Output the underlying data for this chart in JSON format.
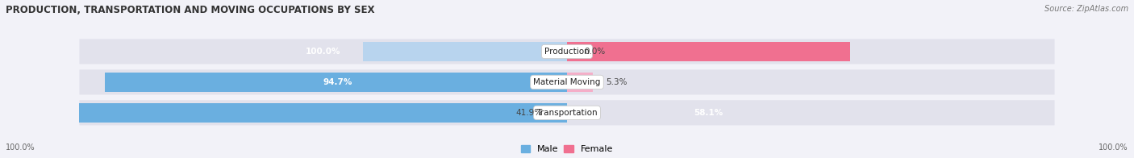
{
  "title": "PRODUCTION, TRANSPORTATION AND MOVING OCCUPATIONS BY SEX",
  "source": "Source: ZipAtlas.com",
  "categories": [
    "Transportation",
    "Material Moving",
    "Production"
  ],
  "male_pct": [
    100.0,
    94.7,
    41.9
  ],
  "female_pct": [
    0.0,
    5.3,
    58.1
  ],
  "male_color_strong": "#6aafe0",
  "male_color_light": "#b8d4ee",
  "female_color_strong": "#f07090",
  "female_color_light": "#f5aec8",
  "background_color": "#f2f2f8",
  "bar_bg_color": "#e2e2ec",
  "figsize": [
    14.06,
    1.96
  ],
  "dpi": 100,
  "left_axis_label": "100.0%",
  "right_axis_label": "100.0%",
  "male_label_pct": [
    "100.0%",
    "94.7%",
    "41.9%"
  ],
  "female_label_pct": [
    "0.0%",
    "5.3%",
    "58.1%"
  ],
  "male_label_inside": [
    true,
    true,
    false
  ],
  "female_label_inside": [
    false,
    false,
    true
  ]
}
